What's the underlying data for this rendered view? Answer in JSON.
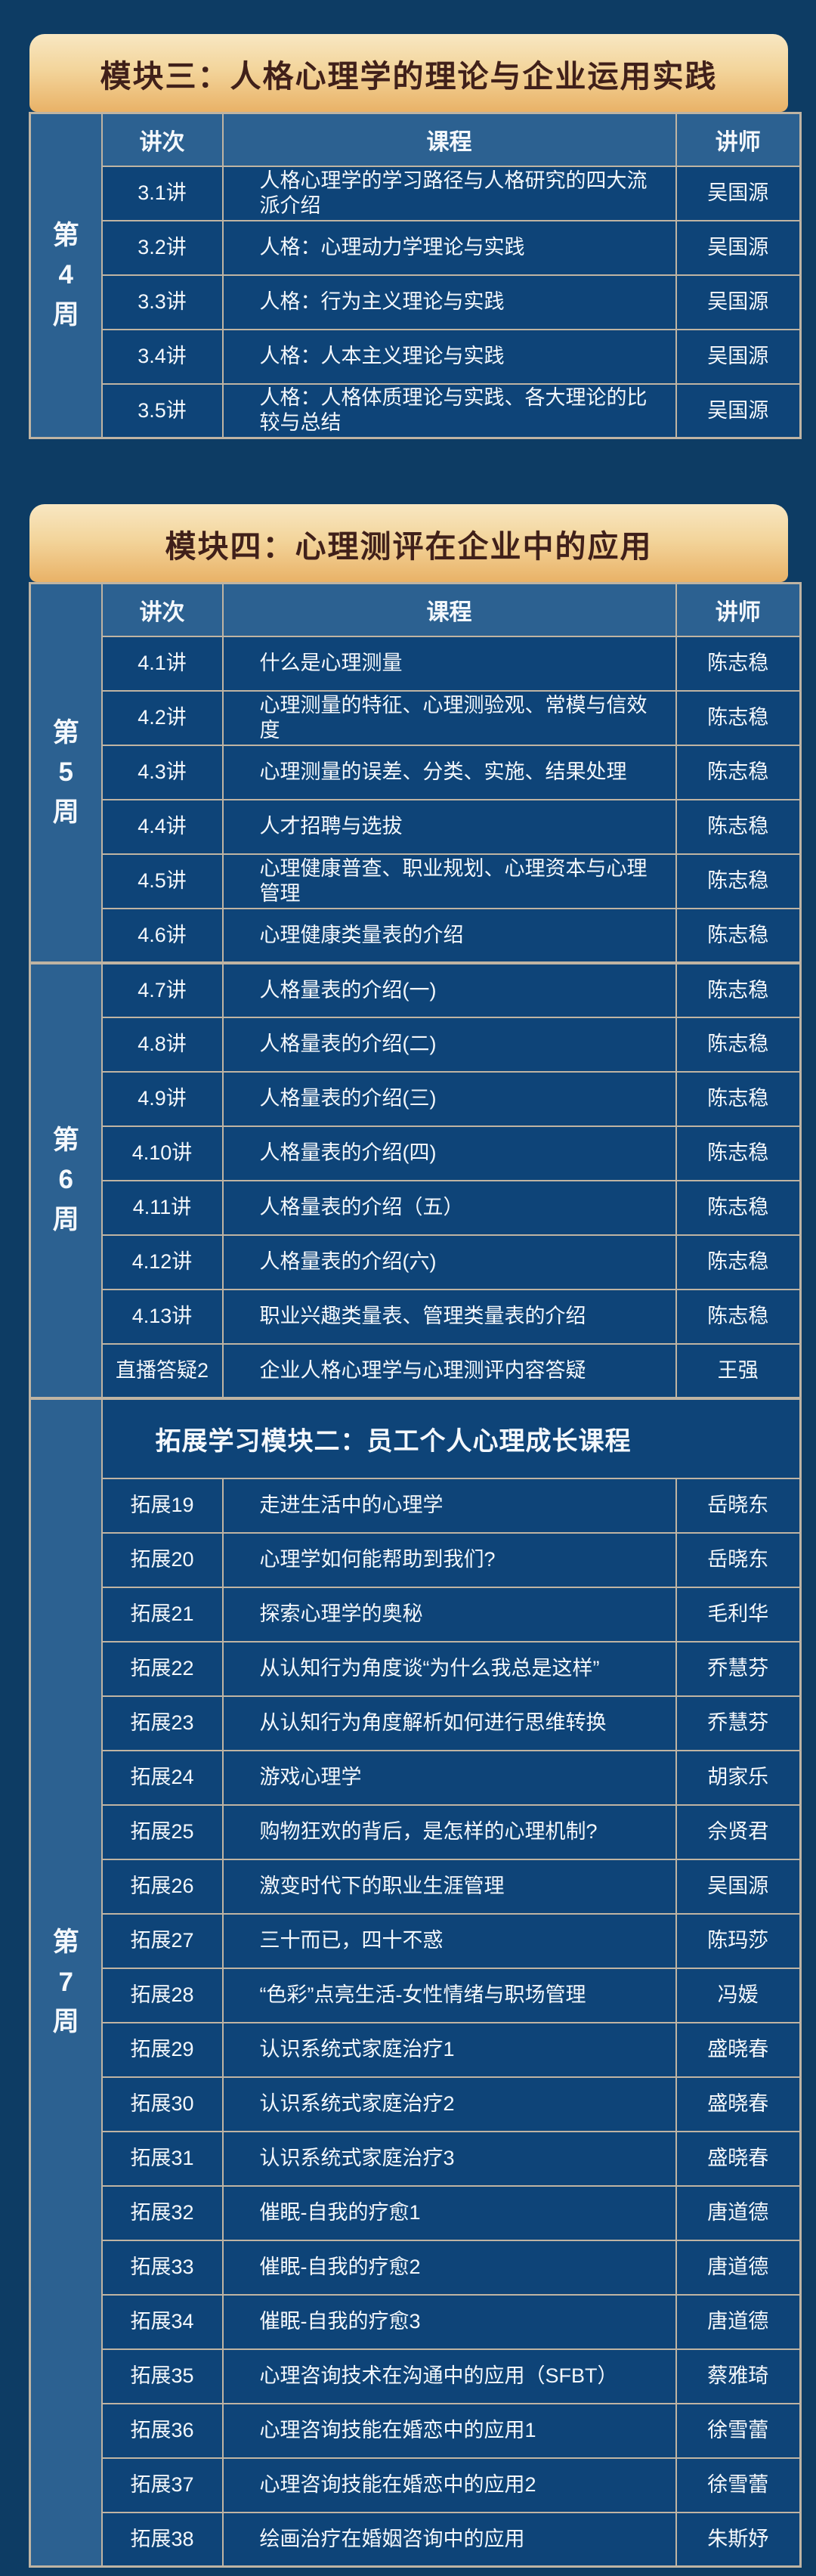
{
  "page": {
    "background_color": "#0d3c64",
    "colors": {
      "dark_cell": "#0e4478",
      "light_cell": "#2c6191",
      "border": "#bfb4a3",
      "gold_gradient_top": "#f8e7c2",
      "gold_gradient_bottom": "#e9b267",
      "module_title_text": "#40201a",
      "band_text_gold": "#e2b96d",
      "body_text": "#f4f8fc"
    }
  },
  "modules": [
    {
      "title": "模块三：人格心理学的理论与企业运用实践",
      "columns": [
        "讲次",
        "课程",
        "讲师"
      ],
      "weeks": [
        {
          "label": "第4周",
          "rows": [
            [
              "3.1讲",
              "人格心理学的学习路径与人格研究的四大流派介绍",
              "吴国源"
            ],
            [
              "3.2讲",
              "人格：心理动力学理论与实践",
              "吴国源"
            ],
            [
              "3.3讲",
              "人格：行为主义理论与实践",
              "吴国源"
            ],
            [
              "3.4讲",
              "人格：人本主义理论与实践",
              "吴国源"
            ],
            [
              "3.5讲",
              "人格：人格体质理论与实践、各大理论的比较与总结",
              "吴国源"
            ]
          ]
        }
      ]
    },
    {
      "title": "模块四：心理测评在企业中的应用",
      "columns": [
        "讲次",
        "课程",
        "讲师"
      ],
      "weeks": [
        {
          "label": "第5周",
          "rows": [
            [
              "4.1讲",
              "什么是心理测量",
              "陈志稳"
            ],
            [
              "4.2讲",
              "心理测量的特征、心理测验观、常模与信效度",
              "陈志稳"
            ],
            [
              "4.3讲",
              "心理测量的误差、分类、实施、结果处理",
              "陈志稳"
            ],
            [
              "4.4讲",
              "人才招聘与选拔",
              "陈志稳"
            ],
            [
              "4.5讲",
              "心理健康普查、职业规划、心理资本与心理管理",
              "陈志稳"
            ],
            [
              "4.6讲",
              "心理健康类量表的介绍",
              "陈志稳"
            ]
          ]
        },
        {
          "label": "第6周",
          "rows": [
            [
              "4.7讲",
              "人格量表的介绍(一)",
              "陈志稳"
            ],
            [
              "4.8讲",
              "人格量表的介绍(二)",
              "陈志稳"
            ],
            [
              "4.9讲",
              "人格量表的介绍(三)",
              "陈志稳"
            ],
            [
              "4.10讲",
              "人格量表的介绍(四)",
              "陈志稳"
            ],
            [
              "4.11讲",
              "人格量表的介绍（五）",
              "陈志稳"
            ],
            [
              "4.12讲",
              "人格量表的介绍(六)",
              "陈志稳"
            ],
            [
              "4.13讲",
              "职业兴趣类量表、管理类量表的介绍",
              "陈志稳"
            ],
            [
              "直播答疑2",
              "企业人格心理学与心理测评内容答疑",
              "王强"
            ]
          ]
        },
        {
          "label": "第7周",
          "section_header": "拓展学习模块二：员工个人心理成长课程",
          "rows": [
            [
              "拓展19",
              "走进生活中的心理学",
              "岳晓东"
            ],
            [
              "拓展20",
              "心理学如何能帮助到我们?",
              "岳晓东"
            ],
            [
              "拓展21",
              "探索心理学的奥秘",
              "毛利华"
            ],
            [
              "拓展22",
              "从认知行为角度谈“为什么我总是这样”",
              "乔慧芬"
            ],
            [
              "拓展23",
              "从认知行为角度解析如何进行思维转换",
              "乔慧芬"
            ],
            [
              "拓展24",
              "游戏心理学",
              "胡家乐"
            ],
            [
              "拓展25",
              "购物狂欢的背后，是怎样的心理机制?",
              "佘贤君"
            ],
            [
              "拓展26",
              "激变时代下的职业生涯管理",
              "吴国源"
            ],
            [
              "拓展27",
              "三十而已，四十不惑",
              "陈玛莎"
            ],
            [
              "拓展28",
              "“色彩”点亮生活-女性情绪与职场管理",
              "冯媛"
            ],
            [
              "拓展29",
              "认识系统式家庭治疗1",
              "盛晓春"
            ],
            [
              "拓展30",
              "认识系统式家庭治疗2",
              "盛晓春"
            ],
            [
              "拓展31",
              "认识系统式家庭治疗3",
              "盛晓春"
            ],
            [
              "拓展32",
              "催眠-自我的疗愈1",
              "唐道德"
            ],
            [
              "拓展33",
              "催眠-自我的疗愈2",
              "唐道德"
            ],
            [
              "拓展34",
              "催眠-自我的疗愈3",
              "唐道德"
            ],
            [
              "拓展35",
              "心理咨询技术在沟通中的应用（SFBT）",
              "蔡雅琦"
            ],
            [
              "拓展36",
              "心理咨询技能在婚恋中的应用1",
              "徐雪蕾"
            ],
            [
              "拓展37",
              "心理咨询技能在婚恋中的应用2",
              "徐雪蕾"
            ],
            [
              "拓展38",
              "绘画治疗在婚姻咨询中的应用",
              "朱斯妤"
            ]
          ]
        }
      ]
    }
  ]
}
